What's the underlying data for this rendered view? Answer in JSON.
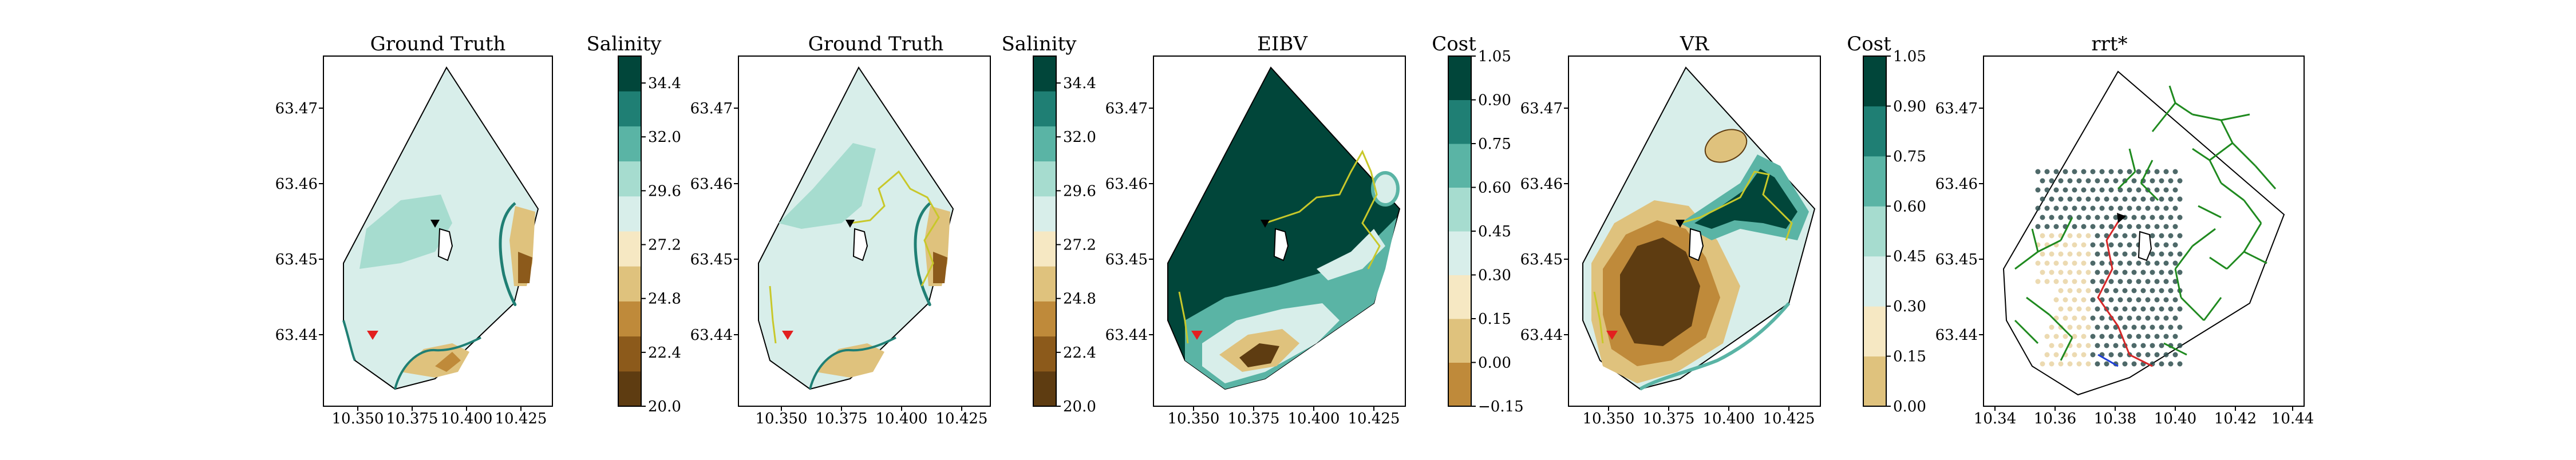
{
  "figure": {
    "type": "contour_map_panels",
    "n_panels": 5
  },
  "chart_data": [
    {
      "type": "heatmap",
      "title": "Ground Truth",
      "field": "salinity",
      "colorbar": {
        "label": "Salinity",
        "ticks": [
          "20.0",
          "22.4",
          "24.8",
          "27.2",
          "29.6",
          "32.0",
          "34.4"
        ],
        "range": [
          20.0,
          35.6
        ]
      },
      "xticks": [
        "10.350",
        "10.375",
        "10.400",
        "10.425"
      ],
      "yticks": [
        "63.47",
        "63.46",
        "63.45",
        "63.44"
      ],
      "xlim": [
        10.335,
        10.445
      ],
      "ylim": [
        63.432,
        63.477
      ],
      "markers": [
        "red-triangle-start",
        "black-triangle-agent"
      ],
      "path": false,
      "colors": [
        "#5e3c11",
        "#8c5a1b",
        "#bf8a3a",
        "#dfc27d",
        "#f6e8c3",
        "#d8eeea",
        "#a6dccf",
        "#5ab4a5",
        "#1f7f74",
        "#01463a"
      ]
    },
    {
      "type": "heatmap",
      "title": "Ground Truth",
      "field": "salinity",
      "colorbar": {
        "label": "Salinity",
        "ticks": [
          "20.0",
          "22.4",
          "24.8",
          "27.2",
          "29.6",
          "32.0",
          "34.4"
        ],
        "range": [
          20.0,
          35.6
        ]
      },
      "xticks": [
        "10.350",
        "10.375",
        "10.400",
        "10.425"
      ],
      "yticks": [
        "63.47",
        "63.46",
        "63.45",
        "63.44"
      ],
      "xlim": [
        10.335,
        10.445
      ],
      "ylim": [
        63.432,
        63.477
      ],
      "markers": [
        "red-triangle-start",
        "black-triangle-agent"
      ],
      "path": true
    },
    {
      "type": "heatmap",
      "title": "EIBV",
      "field": "cost",
      "colorbar": {
        "label": "Cost",
        "ticks": [
          "−0.15",
          "0.00",
          "0.15",
          "0.30",
          "0.45",
          "0.60",
          "0.75",
          "0.90",
          "1.05"
        ],
        "range": [
          -0.15,
          1.05
        ]
      },
      "xticks": [
        "10.350",
        "10.375",
        "10.400",
        "10.425"
      ],
      "yticks": [
        "63.47",
        "63.46",
        "63.45",
        "63.44"
      ],
      "xlim": [
        10.335,
        10.445
      ],
      "ylim": [
        63.432,
        63.477
      ],
      "markers": [
        "red-triangle-start",
        "black-triangle-agent"
      ],
      "path": true
    },
    {
      "type": "heatmap",
      "title": "VR",
      "field": "cost",
      "colorbar": {
        "label": "Cost",
        "ticks": [
          "0.00",
          "0.15",
          "0.30",
          "0.45",
          "0.60",
          "0.75",
          "0.90",
          "1.05"
        ],
        "range": [
          0.0,
          1.05
        ]
      },
      "xticks": [
        "10.350",
        "10.375",
        "10.400",
        "10.425"
      ],
      "yticks": [
        "63.47",
        "63.46",
        "63.45",
        "63.44"
      ],
      "xlim": [
        10.335,
        10.445
      ],
      "ylim": [
        63.432,
        63.477
      ],
      "markers": [
        "red-triangle-start",
        "black-triangle-agent"
      ],
      "path": true
    },
    {
      "type": "scatter",
      "title": "rrt*",
      "xticks": [
        "10.34",
        "10.36",
        "10.38",
        "10.40",
        "10.42",
        "10.44"
      ],
      "yticks": [
        "63.47",
        "63.46",
        "63.45",
        "63.44"
      ],
      "xlim": [
        10.335,
        10.445
      ],
      "ylim": [
        63.432,
        63.477
      ],
      "series": [
        {
          "name": "candidate locations",
          "color": "#2f4f4f"
        },
        {
          "name": "tree edges",
          "color": "#1f8a1f"
        },
        {
          "name": "selected path",
          "color": "#d62728"
        }
      ]
    }
  ]
}
